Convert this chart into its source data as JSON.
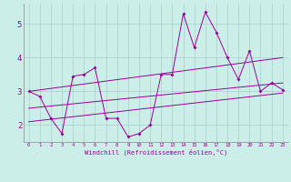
{
  "xlabel": "Windchill (Refroidissement éolien,°C)",
  "bg_color": "#cceee8",
  "line_color": "#990099",
  "xlim": [
    -0.5,
    23.5
  ],
  "ylim": [
    1.5,
    5.6
  ],
  "yticks": [
    2,
    3,
    4,
    5
  ],
  "xticks": [
    0,
    1,
    2,
    3,
    4,
    5,
    6,
    7,
    8,
    9,
    10,
    11,
    12,
    13,
    14,
    15,
    16,
    17,
    18,
    19,
    20,
    21,
    22,
    23
  ],
  "series1_x": [
    0,
    1,
    2,
    3,
    4,
    5,
    6,
    7,
    8,
    9,
    10,
    11,
    12,
    13,
    14,
    15,
    16,
    17,
    18,
    19,
    20,
    21,
    22,
    23
  ],
  "series1_y": [
    3.0,
    2.85,
    2.2,
    1.75,
    3.45,
    3.5,
    3.7,
    2.2,
    2.2,
    1.65,
    1.75,
    2.0,
    3.5,
    3.5,
    5.3,
    4.3,
    5.35,
    4.75,
    4.0,
    3.35,
    4.2,
    3.0,
    3.25,
    3.05
  ],
  "trend1_x": [
    0,
    23
  ],
  "trend1_y": [
    3.0,
    4.0
  ],
  "trend2_x": [
    0,
    23
  ],
  "trend2_y": [
    2.5,
    3.25
  ],
  "trend3_x": [
    0,
    23
  ],
  "trend3_y": [
    2.1,
    2.95
  ]
}
